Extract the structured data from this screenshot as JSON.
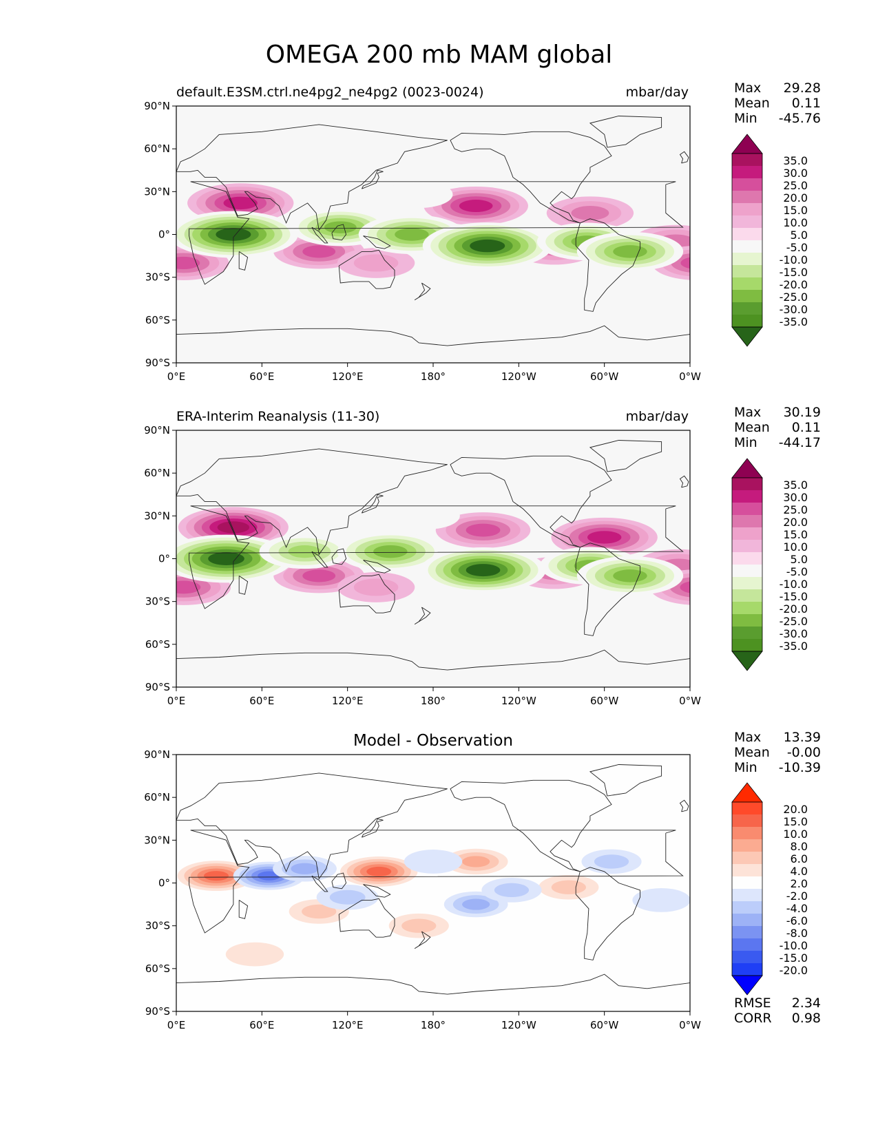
{
  "suptitle": "OMEGA 200 mb MAM global",
  "chart_data": [
    {
      "type": "heatmap",
      "title_left": "default.E3SM.ctrl.ne4pg2_ne4pg2 (0023-0024)",
      "title_right": "mbar/day",
      "x_ticks": [
        "0°E",
        "60°E",
        "120°E",
        "180°",
        "120°W",
        "60°W",
        "0°W"
      ],
      "y_ticks": [
        "90°N",
        "60°N",
        "30°N",
        "0°",
        "30°S",
        "60°S",
        "90°S"
      ],
      "xlim": [
        0,
        360
      ],
      "ylim": [
        -90,
        90
      ],
      "stats": [
        {
          "label": "Max",
          "value": "29.28"
        },
        {
          "label": "Mean",
          "value": "0.11"
        },
        {
          "label": "Min",
          "value": "-45.76"
        }
      ],
      "colorbar": {
        "labels": [
          "35.0",
          "30.0",
          "25.0",
          "20.0",
          "15.0",
          "10.0",
          "5.0",
          "-5.0",
          "-10.0",
          "-15.0",
          "-20.0",
          "-25.0",
          "-30.0",
          "-35.0"
        ],
        "colors": [
          "#8e0152",
          "#a9125f",
          "#c51b7d",
          "#d64f9c",
          "#de77ae",
          "#eea2cb",
          "#f1b6da",
          "#fbdaec",
          "#f7f7f7",
          "#e6f5d0",
          "#c5e69b",
          "#a6d96a",
          "#7fbc41",
          "#5a9d2f",
          "#4d9221",
          "#276419"
        ]
      },
      "features": [
        {
          "lon": 45,
          "lat": 22,
          "value": 28
        },
        {
          "lon": 210,
          "lat": 20,
          "value": 27
        },
        {
          "lon": 290,
          "lat": 15,
          "value": 18
        },
        {
          "lon": 350,
          "lat": -5,
          "value": 18
        },
        {
          "lon": 100,
          "lat": -12,
          "value": 20
        },
        {
          "lon": 5,
          "lat": -20,
          "value": 20
        },
        {
          "lon": 265,
          "lat": -10,
          "value": 16
        },
        {
          "lon": 140,
          "lat": -20,
          "value": 13
        },
        {
          "lon": 40,
          "lat": 0,
          "value": -40
        },
        {
          "lon": 115,
          "lat": 5,
          "value": -25
        },
        {
          "lon": 165,
          "lat": 0,
          "value": -28
        },
        {
          "lon": 218,
          "lat": -8,
          "value": -40
        },
        {
          "lon": 288,
          "lat": -5,
          "value": -25
        },
        {
          "lon": 318,
          "lat": -12,
          "value": -28
        },
        {
          "lon": 170,
          "lat": 28,
          "value": -8
        }
      ]
    },
    {
      "type": "heatmap",
      "title_left": "ERA-Interim Reanalysis (11-30)",
      "title_right": "mbar/day",
      "x_ticks": [
        "0°E",
        "60°E",
        "120°E",
        "180°",
        "120°W",
        "60°W",
        "0°W"
      ],
      "y_ticks": [
        "90°N",
        "60°N",
        "30°N",
        "0°",
        "30°S",
        "60°S",
        "90°S"
      ],
      "xlim": [
        0,
        360
      ],
      "ylim": [
        -90,
        90
      ],
      "stats": [
        {
          "label": "Max",
          "value": "30.19"
        },
        {
          "label": "Mean",
          "value": "0.11"
        },
        {
          "label": "Min",
          "value": "-44.17"
        }
      ],
      "colorbar": {
        "labels": [
          "35.0",
          "30.0",
          "25.0",
          "20.0",
          "15.0",
          "10.0",
          "5.0",
          "-5.0",
          "-10.0",
          "-15.0",
          "-20.0",
          "-25.0",
          "-30.0",
          "-35.0"
        ],
        "colors": [
          "#8e0152",
          "#a9125f",
          "#c51b7d",
          "#d64f9c",
          "#de77ae",
          "#eea2cb",
          "#f1b6da",
          "#fbdaec",
          "#f7f7f7",
          "#e6f5d0",
          "#c5e69b",
          "#a6d96a",
          "#7fbc41",
          "#5a9d2f",
          "#4d9221",
          "#276419"
        ]
      },
      "features": [
        {
          "lon": 40,
          "lat": 22,
          "value": 30
        },
        {
          "lon": 215,
          "lat": 20,
          "value": 22
        },
        {
          "lon": 300,
          "lat": 15,
          "value": 28
        },
        {
          "lon": 352,
          "lat": -5,
          "value": 18
        },
        {
          "lon": 100,
          "lat": -12,
          "value": 20
        },
        {
          "lon": 5,
          "lat": -20,
          "value": 22
        },
        {
          "lon": 265,
          "lat": -10,
          "value": 16
        },
        {
          "lon": 140,
          "lat": -20,
          "value": 13
        },
        {
          "lon": 35,
          "lat": 0,
          "value": -42
        },
        {
          "lon": 90,
          "lat": 5,
          "value": -20
        },
        {
          "lon": 150,
          "lat": 5,
          "value": -28
        },
        {
          "lon": 215,
          "lat": -8,
          "value": -38
        },
        {
          "lon": 290,
          "lat": -5,
          "value": -25
        },
        {
          "lon": 318,
          "lat": -12,
          "value": -28
        },
        {
          "lon": 175,
          "lat": 30,
          "value": -8
        }
      ]
    },
    {
      "type": "heatmap",
      "title_center": "Model - Observation",
      "x_ticks": [
        "0°E",
        "60°E",
        "120°E",
        "180°",
        "120°W",
        "60°W",
        "0°W"
      ],
      "y_ticks": [
        "90°N",
        "60°N",
        "30°N",
        "0°",
        "30°S",
        "60°S",
        "90°S"
      ],
      "xlim": [
        0,
        360
      ],
      "ylim": [
        -90,
        90
      ],
      "stats": [
        {
          "label": "Max",
          "value": "13.39"
        },
        {
          "label": "Mean",
          "value": "-0.00"
        },
        {
          "label": "Min",
          "value": "-10.39"
        }
      ],
      "metrics": [
        {
          "label": "RMSE",
          "value": "2.34"
        },
        {
          "label": "CORR",
          "value": "0.98"
        }
      ],
      "colorbar": {
        "labels": [
          "20.0",
          "15.0",
          "10.0",
          "8.0",
          "6.0",
          "4.0",
          "2.0",
          "-2.0",
          "-4.0",
          "-6.0",
          "-8.0",
          "-10.0",
          "-15.0",
          "-20.0"
        ],
        "colors": [
          "#ff2a00",
          "#ff4a2a",
          "#f7654a",
          "#f98b6f",
          "#fbab91",
          "#fcc8b5",
          "#fde3d8",
          "#fefefe",
          "#dde6fc",
          "#bccdfa",
          "#9db2f6",
          "#7b93f2",
          "#5b76f0",
          "#3a5af0",
          "#1f3ff5",
          "#0000ff"
        ]
      },
      "features": [
        {
          "lon": 28,
          "lat": 5,
          "value": 13
        },
        {
          "lon": 142,
          "lat": 8,
          "value": 13
        },
        {
          "lon": 210,
          "lat": 15,
          "value": 6
        },
        {
          "lon": 275,
          "lat": -3,
          "value": 4
        },
        {
          "lon": 100,
          "lat": -20,
          "value": 4
        },
        {
          "lon": 170,
          "lat": -30,
          "value": 4
        },
        {
          "lon": 55,
          "lat": -50,
          "value": 3
        },
        {
          "lon": 65,
          "lat": 5,
          "value": -10
        },
        {
          "lon": 90,
          "lat": 10,
          "value": -6
        },
        {
          "lon": 210,
          "lat": -15,
          "value": -6
        },
        {
          "lon": 235,
          "lat": -5,
          "value": -4
        },
        {
          "lon": 305,
          "lat": 15,
          "value": -4
        },
        {
          "lon": 340,
          "lat": -12,
          "value": -3
        },
        {
          "lon": 120,
          "lat": -10,
          "value": -5
        },
        {
          "lon": 180,
          "lat": 15,
          "value": -3
        }
      ]
    }
  ]
}
